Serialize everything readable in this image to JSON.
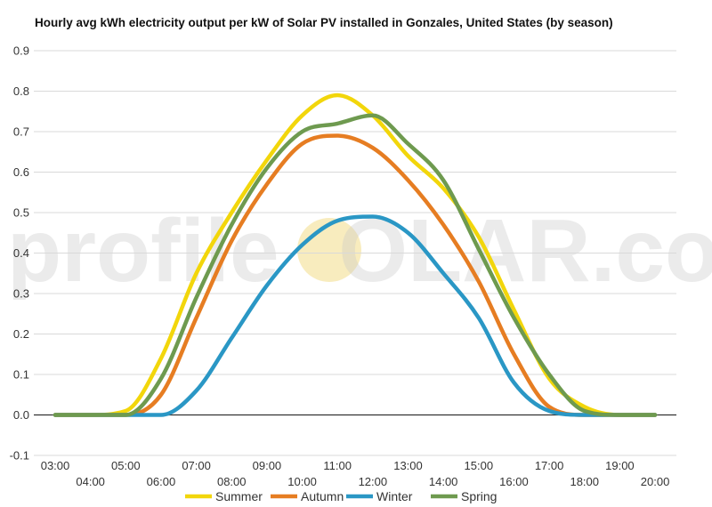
{
  "chart_data": {
    "type": "line",
    "title": "Hourly avg kWh electricity output per kW of Solar PV installed in Gonzales, United States (by season)",
    "xlabel": "",
    "ylabel": "",
    "x": [
      "03:00",
      "04:00",
      "05:00",
      "06:00",
      "07:00",
      "08:00",
      "09:00",
      "10:00",
      "11:00",
      "12:00",
      "13:00",
      "14:00",
      "15:00",
      "16:00",
      "17:00",
      "18:00",
      "19:00",
      "20:00"
    ],
    "xlim": [
      "03:00",
      "20:00"
    ],
    "ylim": [
      -0.1,
      0.9
    ],
    "y_ticks": [
      "-0.1",
      "0.0",
      "0.1",
      "0.2",
      "0.3",
      "0.4",
      "0.5",
      "0.6",
      "0.7",
      "0.8",
      "0.9"
    ],
    "grid": true,
    "legend_position": "bottom",
    "series": [
      {
        "name": "Summer",
        "color": "#F2D60B",
        "values": [
          0.0,
          0.0,
          0.01,
          0.14,
          0.35,
          0.5,
          0.63,
          0.74,
          0.79,
          0.74,
          0.64,
          0.56,
          0.44,
          0.26,
          0.09,
          0.02,
          0.0,
          0.0
        ]
      },
      {
        "name": "Autumn",
        "color": "#E67D22",
        "values": [
          0.0,
          0.0,
          0.0,
          0.05,
          0.24,
          0.43,
          0.57,
          0.67,
          0.69,
          0.66,
          0.58,
          0.47,
          0.33,
          0.15,
          0.02,
          0.0,
          0.0,
          0.0
        ]
      },
      {
        "name": "Winter",
        "color": "#2A97C5",
        "values": [
          0.0,
          0.0,
          0.0,
          0.0,
          0.06,
          0.19,
          0.32,
          0.42,
          0.48,
          0.49,
          0.45,
          0.35,
          0.24,
          0.08,
          0.01,
          0.0,
          0.0,
          0.0
        ]
      },
      {
        "name": "Spring",
        "color": "#6E9A4F",
        "values": [
          0.0,
          0.0,
          0.0,
          0.09,
          0.29,
          0.47,
          0.61,
          0.7,
          0.72,
          0.74,
          0.67,
          0.58,
          0.41,
          0.24,
          0.1,
          0.01,
          0.0,
          0.0
        ]
      }
    ],
    "watermark": {
      "before": "profile",
      "sun_letter": "S",
      "after": "OLAR.com"
    }
  },
  "colors": {
    "grid": "#d9d9d9",
    "zero_line": "#333333",
    "watermark_sun": "#f5e6a8"
  }
}
